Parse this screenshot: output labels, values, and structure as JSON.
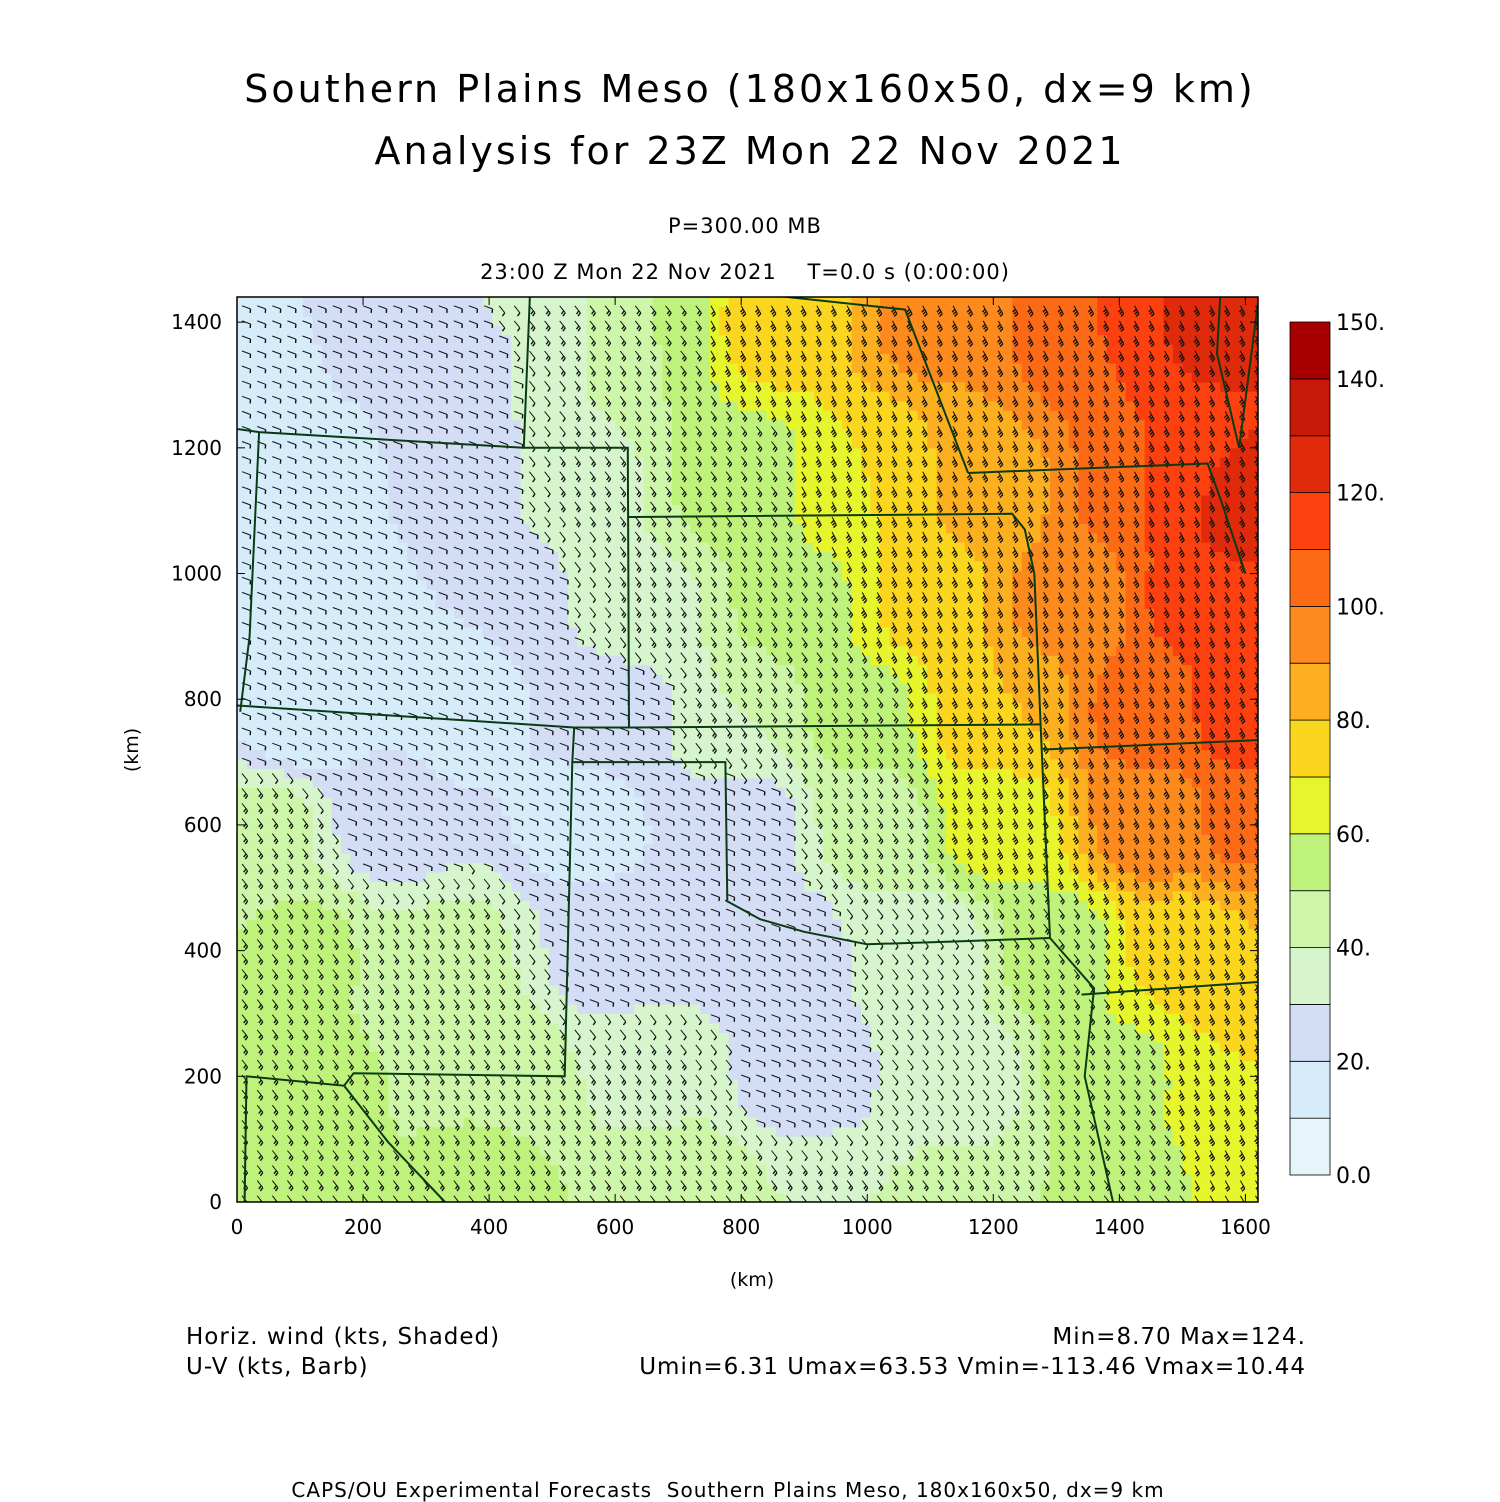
{
  "header": {
    "title": "Southern Plains Meso (180x160x50, dx=9 km)",
    "subtitle": "Analysis for 23Z Mon 22 Nov 2021",
    "level": "P=300.00 MB",
    "time": "23:00 Z Mon 22 Nov 2021    T=0.0 s (0:00:00)"
  },
  "chart_data": {
    "type": "heatmap",
    "xlabel": "(km)",
    "ylabel": "(km)",
    "xlim": [
      0,
      1620
    ],
    "ylim": [
      0,
      1440
    ],
    "xticks": [
      0,
      200,
      400,
      600,
      800,
      1000,
      1200,
      1400,
      1600
    ],
    "yticks": [
      0,
      200,
      400,
      600,
      800,
      1000,
      1200,
      1400
    ],
    "colorbar": {
      "levels": [
        0,
        10,
        20,
        30,
        40,
        50,
        60,
        70,
        80,
        90,
        100,
        110,
        120,
        130,
        140,
        150
      ],
      "labels": [
        "0.0",
        "20.",
        "40.",
        "60.",
        "80.",
        "100.",
        "120.",
        "140.",
        "150."
      ],
      "colors": [
        "#e6f4fb",
        "#d6ecfa",
        "#d3ddf5",
        "#d6f5cc",
        "#cdf6a8",
        "#bff27a",
        "#e6f52c",
        "#fad61e",
        "#fcb020",
        "#fc8a1c",
        "#fc6a16",
        "#fc4010",
        "#e02a0c",
        "#c81808",
        "#a80000"
      ]
    },
    "field_anchors": [
      {
        "x": 50,
        "y": 1350,
        "value": 18
      },
      {
        "x": 200,
        "y": 1400,
        "value": 22
      },
      {
        "x": 380,
        "y": 1350,
        "value": 28
      },
      {
        "x": 500,
        "y": 1400,
        "value": 38
      },
      {
        "x": 650,
        "y": 1400,
        "value": 50
      },
      {
        "x": 850,
        "y": 1400,
        "value": 74
      },
      {
        "x": 1100,
        "y": 1400,
        "value": 92
      },
      {
        "x": 1350,
        "y": 1400,
        "value": 110
      },
      {
        "x": 1550,
        "y": 1400,
        "value": 122
      },
      {
        "x": 100,
        "y": 1150,
        "value": 14
      },
      {
        "x": 350,
        "y": 1150,
        "value": 22
      },
      {
        "x": 550,
        "y": 1150,
        "value": 38
      },
      {
        "x": 800,
        "y": 1150,
        "value": 55
      },
      {
        "x": 1000,
        "y": 1150,
        "value": 70
      },
      {
        "x": 1200,
        "y": 1150,
        "value": 88
      },
      {
        "x": 1450,
        "y": 1150,
        "value": 110
      },
      {
        "x": 1600,
        "y": 1100,
        "value": 124
      },
      {
        "x": 100,
        "y": 950,
        "value": 10
      },
      {
        "x": 400,
        "y": 950,
        "value": 20
      },
      {
        "x": 650,
        "y": 950,
        "value": 38
      },
      {
        "x": 900,
        "y": 950,
        "value": 58
      },
      {
        "x": 1100,
        "y": 950,
        "value": 74
      },
      {
        "x": 1300,
        "y": 950,
        "value": 92
      },
      {
        "x": 1550,
        "y": 950,
        "value": 116
      },
      {
        "x": 100,
        "y": 780,
        "value": 12
      },
      {
        "x": 350,
        "y": 780,
        "value": 16
      },
      {
        "x": 600,
        "y": 780,
        "value": 24
      },
      {
        "x": 800,
        "y": 780,
        "value": 40
      },
      {
        "x": 1000,
        "y": 780,
        "value": 58
      },
      {
        "x": 1200,
        "y": 780,
        "value": 80
      },
      {
        "x": 1450,
        "y": 780,
        "value": 105
      },
      {
        "x": 1600,
        "y": 780,
        "value": 118
      },
      {
        "x": 50,
        "y": 600,
        "value": 42
      },
      {
        "x": 250,
        "y": 620,
        "value": 22
      },
      {
        "x": 550,
        "y": 600,
        "value": 16
      },
      {
        "x": 800,
        "y": 600,
        "value": 24
      },
      {
        "x": 1000,
        "y": 600,
        "value": 42
      },
      {
        "x": 1200,
        "y": 600,
        "value": 64
      },
      {
        "x": 1450,
        "y": 600,
        "value": 95
      },
      {
        "x": 1600,
        "y": 600,
        "value": 102
      },
      {
        "x": 100,
        "y": 400,
        "value": 52
      },
      {
        "x": 350,
        "y": 400,
        "value": 42
      },
      {
        "x": 600,
        "y": 400,
        "value": 24
      },
      {
        "x": 850,
        "y": 400,
        "value": 22
      },
      {
        "x": 1100,
        "y": 400,
        "value": 34
      },
      {
        "x": 1300,
        "y": 400,
        "value": 55
      },
      {
        "x": 1500,
        "y": 400,
        "value": 74
      },
      {
        "x": 1620,
        "y": 400,
        "value": 80
      },
      {
        "x": 100,
        "y": 200,
        "value": 52
      },
      {
        "x": 400,
        "y": 200,
        "value": 50
      },
      {
        "x": 650,
        "y": 200,
        "value": 38
      },
      {
        "x": 900,
        "y": 200,
        "value": 24
      },
      {
        "x": 1150,
        "y": 200,
        "value": 35
      },
      {
        "x": 1400,
        "y": 200,
        "value": 58
      },
      {
        "x": 1600,
        "y": 200,
        "value": 70
      },
      {
        "x": 100,
        "y": 0,
        "value": 50
      },
      {
        "x": 400,
        "y": 0,
        "value": 52
      },
      {
        "x": 700,
        "y": 0,
        "value": 50
      },
      {
        "x": 900,
        "y": 0,
        "value": 40
      },
      {
        "x": 1150,
        "y": 0,
        "value": 42
      },
      {
        "x": 1400,
        "y": 0,
        "value": 55
      },
      {
        "x": 1600,
        "y": 0,
        "value": 62
      }
    ],
    "min": 8.7,
    "max": 124,
    "umin": 6.31,
    "umax": 63.53,
    "vmin": -113.46,
    "vmax": 10.44
  },
  "legend": {
    "line1": "Horiz. wind (kts, Shaded)",
    "line2": "U-V (kts, Barb)"
  },
  "stats": {
    "line1": "Min=8.70 Max=124.",
    "line2": "Umin=6.31 Umax=63.53 Vmin=-113.46 Vmax=10.44"
  },
  "footer": {
    "credit": "CAPS/OU Experimental Forecasts  Southern Plains Meso, 180x160x50, dx=9 km"
  },
  "colors": {
    "boundary": "#0a3a14",
    "barb": "#111111",
    "frame": "#000000"
  }
}
